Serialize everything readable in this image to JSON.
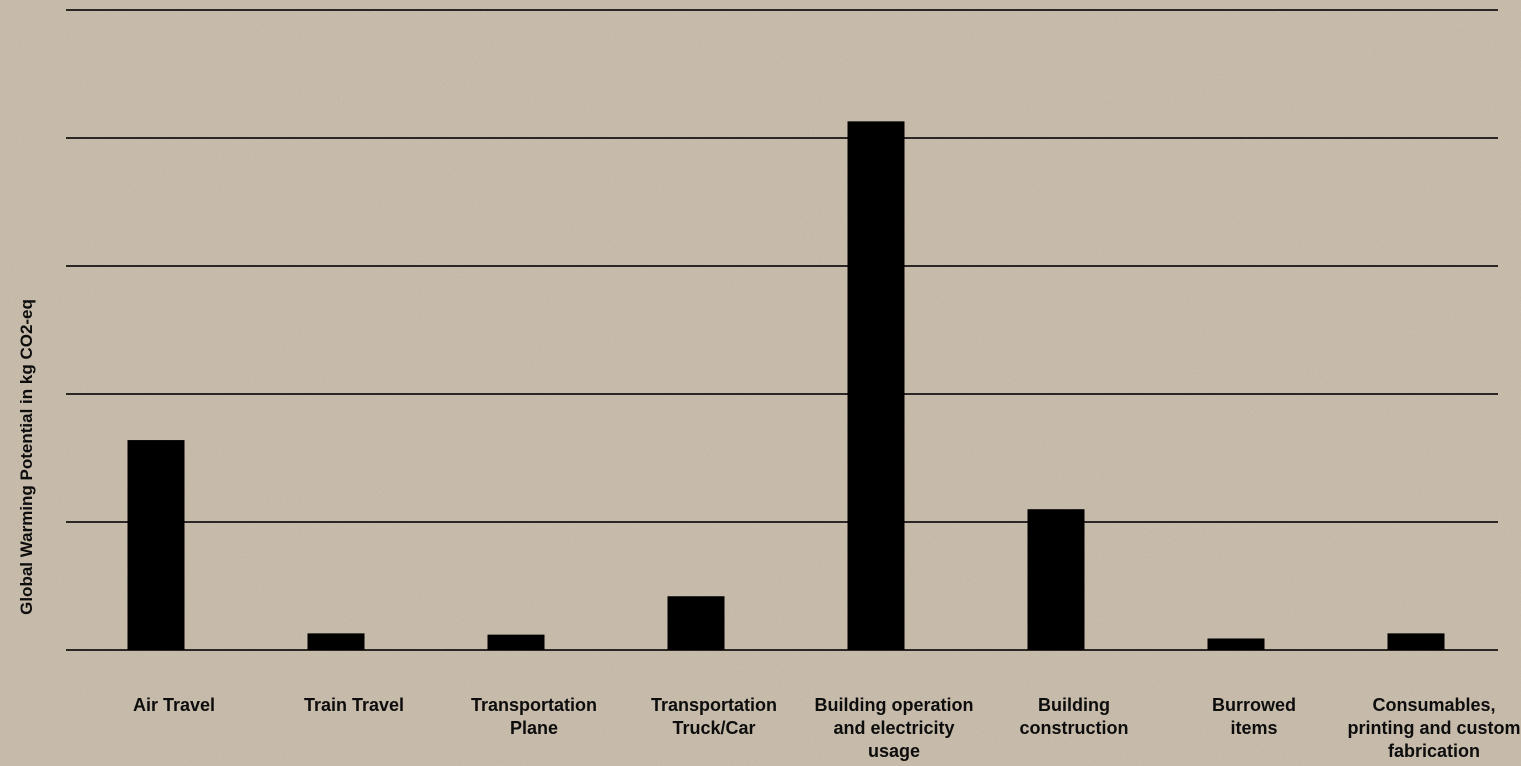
{
  "chart_data": {
    "type": "bar",
    "title": "",
    "xlabel": "",
    "ylabel": "Global Warming Potential in kg CO2-eq",
    "categories": [
      [
        "Air Travel"
      ],
      [
        "Train Travel"
      ],
      [
        "Transportation",
        "Plane"
      ],
      [
        "Transportation",
        "Truck/Car"
      ],
      [
        "Building operation",
        "and electricity",
        "usage"
      ],
      [
        "Building",
        "construction"
      ],
      [
        "Burrowed",
        "items"
      ],
      [
        "Consumables,",
        "printing and custom",
        "fabrication"
      ]
    ],
    "values": [
      1.64,
      0.13,
      0.12,
      0.42,
      4.13,
      1.1,
      0.09,
      0.13
    ],
    "ylim": [
      0,
      5
    ],
    "gridlines": [
      0,
      1,
      2,
      3,
      4,
      5
    ],
    "grid": true,
    "tick_labels_shown": false,
    "legend": false
  },
  "colors": {
    "background": "#cbbfae",
    "bar": "#000000",
    "grid": "#2a2724",
    "text": "#0d0d0d"
  }
}
